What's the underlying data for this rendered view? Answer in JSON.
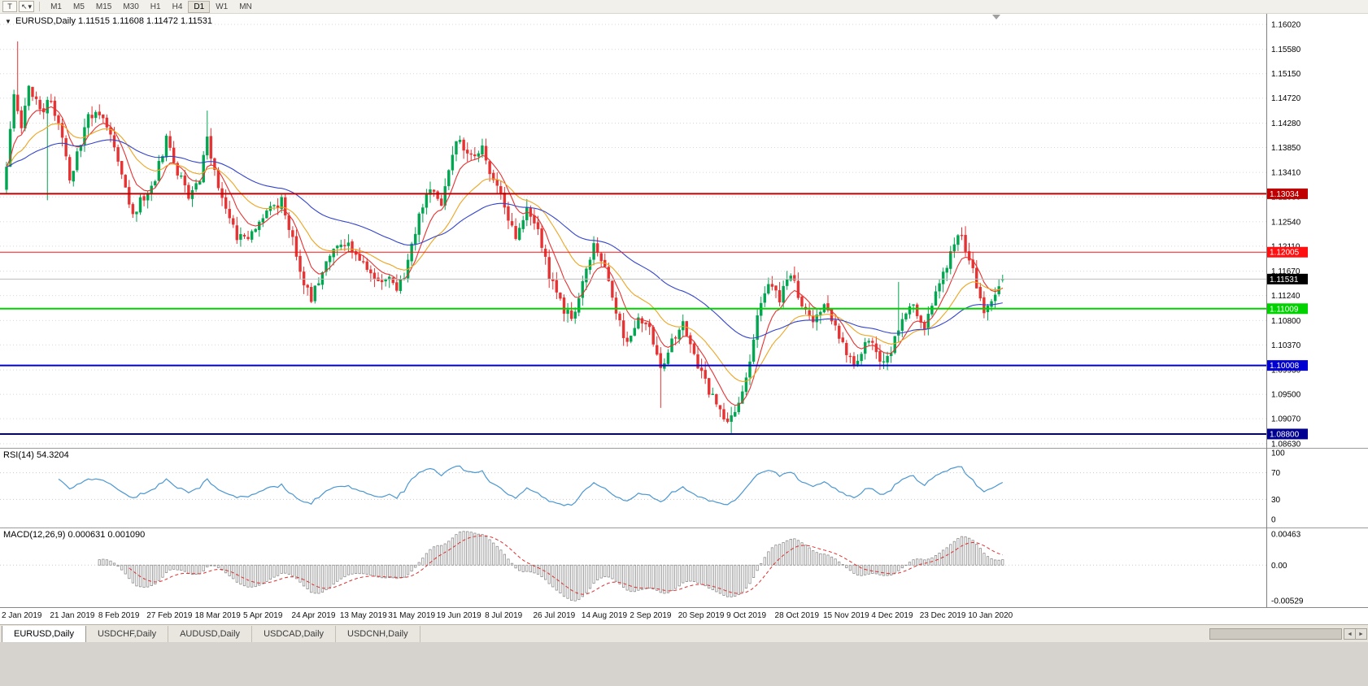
{
  "icons": {
    "one_click": "▼",
    "tool_t": "T",
    "cursor_tool": "↖",
    "dropdown": "▾",
    "scroll_left": "◄",
    "scroll_right": "►"
  },
  "toolbar": {
    "timeframes": [
      "M1",
      "M5",
      "M15",
      "M30",
      "H1",
      "H4",
      "D1",
      "W1",
      "MN"
    ],
    "active_timeframe": "D1"
  },
  "chart": {
    "title": "EURUSD,Daily 1.11515 1.11608 1.11472 1.11531",
    "symbol": "EURUSD",
    "period": "Daily",
    "price_axis": [
      "1.16020",
      "1.15580",
      "1.15150",
      "1.14720",
      "1.14280",
      "1.13850",
      "1.13410",
      "1.12980",
      "1.12540",
      "1.12110",
      "1.11670",
      "1.11240",
      "1.10800",
      "1.10370",
      "1.09930",
      "1.09500",
      "1.09070",
      "1.08630"
    ],
    "hlines": [
      {
        "price": 1.13034,
        "label": "1.13034",
        "color": "#c00000",
        "width": 2
      },
      {
        "price": 1.12005,
        "label": "1.12005",
        "color": "#ff1010",
        "width": 1
      },
      {
        "price": 1.11531,
        "label": "1.11531",
        "color": "#bcbcbc",
        "width": 1,
        "label_bg": "#000000",
        "current": true
      },
      {
        "price": 1.11009,
        "label": "1.11009",
        "color": "#00d200",
        "width": 2
      },
      {
        "price": 1.10008,
        "label": "1.10008",
        "color": "#0000d0",
        "width": 2
      },
      {
        "price": 1.088,
        "label": "1.08800",
        "color": "#000090",
        "width": 2
      }
    ],
    "date_ticks": [
      "2 Jan 2019",
      "21 Jan 2019",
      "8 Feb 2019",
      "27 Feb 2019",
      "18 Mar 2019",
      "5 Apr 2019",
      "24 Apr 2019",
      "13 May 2019",
      "31 May 2019",
      "19 Jun 2019",
      "8 Jul 2019",
      "26 Jul 2019",
      "14 Aug 2019",
      "2 Sep 2019",
      "20 Sep 2019",
      "9 Oct 2019",
      "28 Oct 2019",
      "15 Nov 2019",
      "4 Dec 2019",
      "23 Dec 2019",
      "10 Jan 2020"
    ]
  },
  "rsi": {
    "label": "RSI(14) 54.3204",
    "value": 54.3204,
    "line_color": "#4a97d2",
    "levels": [
      {
        "text": "100",
        "value": 100
      },
      {
        "text": "70",
        "value": 70
      },
      {
        "text": "30",
        "value": 30
      },
      {
        "text": "0",
        "value": 0
      }
    ]
  },
  "macd": {
    "label": "MACD(12,26,9) 0.000631 0.001090",
    "macd_value": 0.000631,
    "signal_value": 0.00109,
    "histogram_color": "#8c8c8c",
    "signal_color": "#e03030",
    "levels": [
      {
        "text": "0.00463",
        "value": 0.00463
      },
      {
        "text": "0.00",
        "value": 0
      },
      {
        "text": "-0.00529",
        "value": -0.00529
      }
    ]
  },
  "tabs": [
    {
      "label": "EURUSD,Daily",
      "active": true
    },
    {
      "label": "USDCHF,Daily",
      "active": false
    },
    {
      "label": "AUDUSD,Daily",
      "active": false
    },
    {
      "label": "USDCAD,Daily",
      "active": false
    },
    {
      "label": "USDCNH,Daily",
      "active": false
    }
  ],
  "chart_data": {
    "type": "candlestick",
    "symbol": "EURUSD",
    "timeframe": "Daily",
    "bars": 269,
    "ylim": [
      1.0856,
      1.162
    ],
    "last": {
      "open": 1.11515,
      "high": 1.11608,
      "low": 1.11472,
      "close": 1.11531
    },
    "up_color": "#00a650",
    "down_color": "#e63232",
    "ma": [
      {
        "period": 8,
        "color": "#e63232"
      },
      {
        "period": 21,
        "color": "#eda520"
      },
      {
        "period": 55,
        "color": "#3344cc"
      }
    ],
    "price_path": [
      [
        0,
        1.1345
      ],
      [
        2,
        1.148
      ],
      [
        4,
        1.142
      ],
      [
        6,
        1.1495
      ],
      [
        9,
        1.1445
      ],
      [
        12,
        1.147
      ],
      [
        15,
        1.141
      ],
      [
        17,
        1.133
      ],
      [
        19,
        1.137
      ],
      [
        22,
        1.144
      ],
      [
        25,
        1.145
      ],
      [
        28,
        1.141
      ],
      [
        31,
        1.133
      ],
      [
        34,
        1.1265
      ],
      [
        37,
        1.13
      ],
      [
        40,
        1.133
      ],
      [
        43,
        1.14
      ],
      [
        46,
        1.134
      ],
      [
        49,
        1.13
      ],
      [
        52,
        1.133
      ],
      [
        54,
        1.14
      ],
      [
        56,
        1.134
      ],
      [
        59,
        1.127
      ],
      [
        62,
        1.123
      ],
      [
        65,
        1.122
      ],
      [
        68,
        1.125
      ],
      [
        71,
        1.128
      ],
      [
        74,
        1.129
      ],
      [
        77,
        1.122
      ],
      [
        80,
        1.115
      ],
      [
        82,
        1.112
      ],
      [
        85,
        1.117
      ],
      [
        88,
        1.121
      ],
      [
        91,
        1.122
      ],
      [
        94,
        1.12
      ],
      [
        97,
        1.117
      ],
      [
        100,
        1.115
      ],
      [
        103,
        1.116
      ],
      [
        105,
        1.113
      ],
      [
        108,
        1.118
      ],
      [
        111,
        1.126
      ],
      [
        114,
        1.131
      ],
      [
        117,
        1.129
      ],
      [
        120,
        1.138
      ],
      [
        122,
        1.14
      ],
      [
        125,
        1.1365
      ],
      [
        128,
        1.138
      ],
      [
        131,
        1.133
      ],
      [
        134,
        1.128
      ],
      [
        137,
        1.123
      ],
      [
        140,
        1.128
      ],
      [
        143,
        1.124
      ],
      [
        146,
        1.116
      ],
      [
        149,
        1.111
      ],
      [
        152,
        1.108
      ],
      [
        155,
        1.115
      ],
      [
        158,
        1.121
      ],
      [
        161,
        1.117
      ],
      [
        164,
        1.109
      ],
      [
        167,
        1.104
      ],
      [
        170,
        1.109
      ],
      [
        173,
        1.106
      ],
      [
        176,
        1.099
      ],
      [
        179,
        1.104
      ],
      [
        182,
        1.107
      ],
      [
        185,
        1.102
      ],
      [
        188,
        1.097
      ],
      [
        191,
        1.093
      ],
      [
        194,
        1.09
      ],
      [
        196,
        1.092
      ],
      [
        199,
        1.098
      ],
      [
        202,
        1.108
      ],
      [
        205,
        1.115
      ],
      [
        208,
        1.112
      ],
      [
        211,
        1.116
      ],
      [
        214,
        1.111
      ],
      [
        217,
        1.107
      ],
      [
        220,
        1.111
      ],
      [
        223,
        1.107
      ],
      [
        226,
        1.102
      ],
      [
        229,
        1.1
      ],
      [
        232,
        1.105
      ],
      [
        235,
        1.101
      ],
      [
        238,
        1.103
      ],
      [
        241,
        1.108
      ],
      [
        244,
        1.111
      ],
      [
        247,
        1.107
      ],
      [
        250,
        1.113
      ],
      [
        253,
        1.118
      ],
      [
        255,
        1.122
      ],
      [
        257,
        1.123
      ],
      [
        259,
        1.119
      ],
      [
        261,
        1.114
      ],
      [
        263,
        1.11
      ],
      [
        265,
        1.112
      ],
      [
        267,
        1.1145
      ],
      [
        268,
        1.11531
      ]
    ],
    "spikes": [
      {
        "idx": 3,
        "high": 1.1572
      },
      {
        "idx": 11,
        "low": 1.1292
      },
      {
        "idx": 54,
        "high": 1.145
      },
      {
        "idx": 176,
        "low": 1.0926
      },
      {
        "idx": 195,
        "low": 1.0879
      },
      {
        "idx": 240,
        "high": 1.1148,
        "low": 1.1042
      }
    ]
  }
}
